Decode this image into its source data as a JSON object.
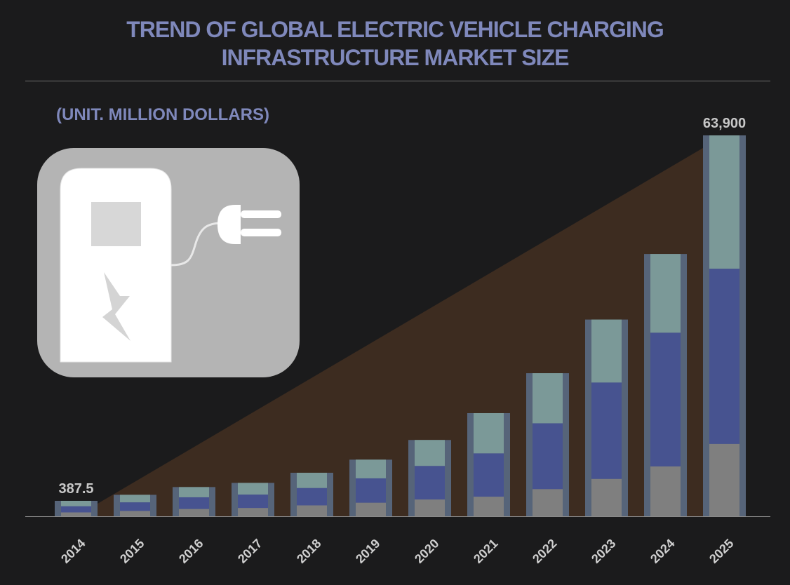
{
  "title_lines": [
    "TREND OF GLOBAL ELECTRIC VEHICLE CHARGING",
    "INFRASTRUCTURE MARKET SIZE"
  ],
  "unit_label": "(UNIT. MILLION DOLLARS)",
  "colors": {
    "background": "#1b1b1c",
    "title": "#7f88bb",
    "bar_frame": "#566479",
    "segment_gray": "#7f7f7f",
    "segment_blue": "#475390",
    "segment_teal": "#7b9998",
    "triangle": "#3d2c20",
    "value_label": "#c8c8c8",
    "icon_card": "#b4b4b4",
    "icon_white": "#ffffff"
  },
  "icon": "ev-charging-station-icon",
  "chart_data": {
    "type": "bar",
    "stacked": true,
    "categories": [
      "2014",
      "2015",
      "2016",
      "2017",
      "2018",
      "2019",
      "2020",
      "2021",
      "2022",
      "2023",
      "2024",
      "2025"
    ],
    "values": [
      387.5,
      3600,
      4900,
      5600,
      7300,
      9500,
      12800,
      17300,
      24000,
      33000,
      44000,
      63900
    ],
    "segment_shares": {
      "gray": [
        0.25,
        0.25,
        0.25,
        0.25,
        0.25,
        0.24,
        0.22,
        0.19,
        0.19,
        0.19,
        0.19,
        0.19
      ],
      "blue": [
        0.4,
        0.4,
        0.4,
        0.4,
        0.4,
        0.43,
        0.44,
        0.42,
        0.46,
        0.49,
        0.51,
        0.46
      ],
      "teal": [
        0.35,
        0.35,
        0.35,
        0.35,
        0.35,
        0.33,
        0.34,
        0.39,
        0.35,
        0.32,
        0.3,
        0.35
      ]
    },
    "value_labels": [
      {
        "index": 0,
        "text": "387.5"
      },
      {
        "index": 11,
        "text": "63,900"
      }
    ],
    "ylim": [
      0,
      63900
    ],
    "grid": false,
    "legend": "none"
  }
}
